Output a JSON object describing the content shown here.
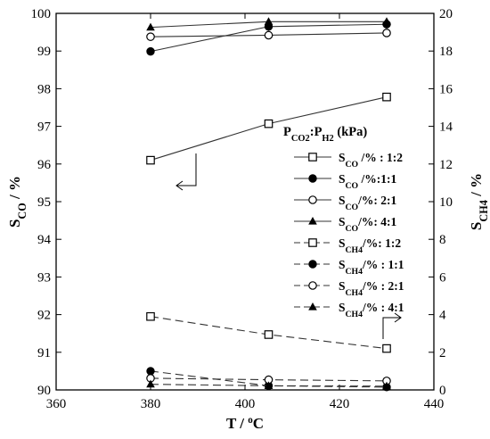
{
  "chart_data": {
    "type": "line",
    "xlabel": "T / °C",
    "ylabel_left": "S_CO / %",
    "ylabel_right": "S_CH4 / %",
    "xlim": [
      360,
      440
    ],
    "ylim_left": [
      90,
      100
    ],
    "ylim_right": [
      0,
      20
    ],
    "xticks": [
      360,
      380,
      400,
      420,
      440
    ],
    "yticks_left": [
      90,
      91,
      92,
      93,
      94,
      95,
      96,
      97,
      98,
      99,
      100
    ],
    "yticks_right": [
      0,
      2,
      4,
      6,
      8,
      10,
      12,
      14,
      16,
      18,
      20
    ],
    "x": [
      380,
      405,
      430
    ],
    "legend_title": "P_CO2:P_H2 (kPa)",
    "legend_position": "right-middle",
    "series": [
      {
        "name": "S_CO /% : 1:2",
        "axis": "left",
        "marker": "square-open",
        "dashed": false,
        "values": [
          96.1,
          97.07,
          97.78
        ]
      },
      {
        "name": "S_CO /%:1:1",
        "axis": "left",
        "marker": "circle-filled",
        "dashed": false,
        "values": [
          98.99,
          99.65,
          99.71
        ]
      },
      {
        "name": "S_CO/%: 2:1",
        "axis": "left",
        "marker": "circle-open",
        "dashed": false,
        "values": [
          99.38,
          99.42,
          99.48
        ]
      },
      {
        "name": "S_CO/%: 4:1",
        "axis": "left",
        "marker": "triangle-filled",
        "dashed": false,
        "values": [
          99.63,
          99.78,
          99.78
        ]
      },
      {
        "name": "S_CH4/%: 1:2",
        "axis": "right",
        "marker": "square-open",
        "dashed": true,
        "values": [
          3.9,
          2.94,
          2.2
        ]
      },
      {
        "name": "S_CH4/% : 1:1",
        "axis": "right",
        "marker": "circle-filled",
        "dashed": true,
        "values": [
          1.0,
          0.22,
          0.15
        ]
      },
      {
        "name": "S_CH4/% : 2:1",
        "axis": "right",
        "marker": "circle-open",
        "dashed": true,
        "values": [
          0.62,
          0.54,
          0.48
        ]
      },
      {
        "name": "S_CH4/% : 4:1",
        "axis": "right",
        "marker": "triangle-filled",
        "dashed": true,
        "values": [
          0.3,
          0.22,
          0.2
        ]
      }
    ],
    "annotations": [
      "left-pointing arrow near S_CO 1:2 curve",
      "right-pointing arrow near S_CH4 1:2 curve"
    ]
  }
}
